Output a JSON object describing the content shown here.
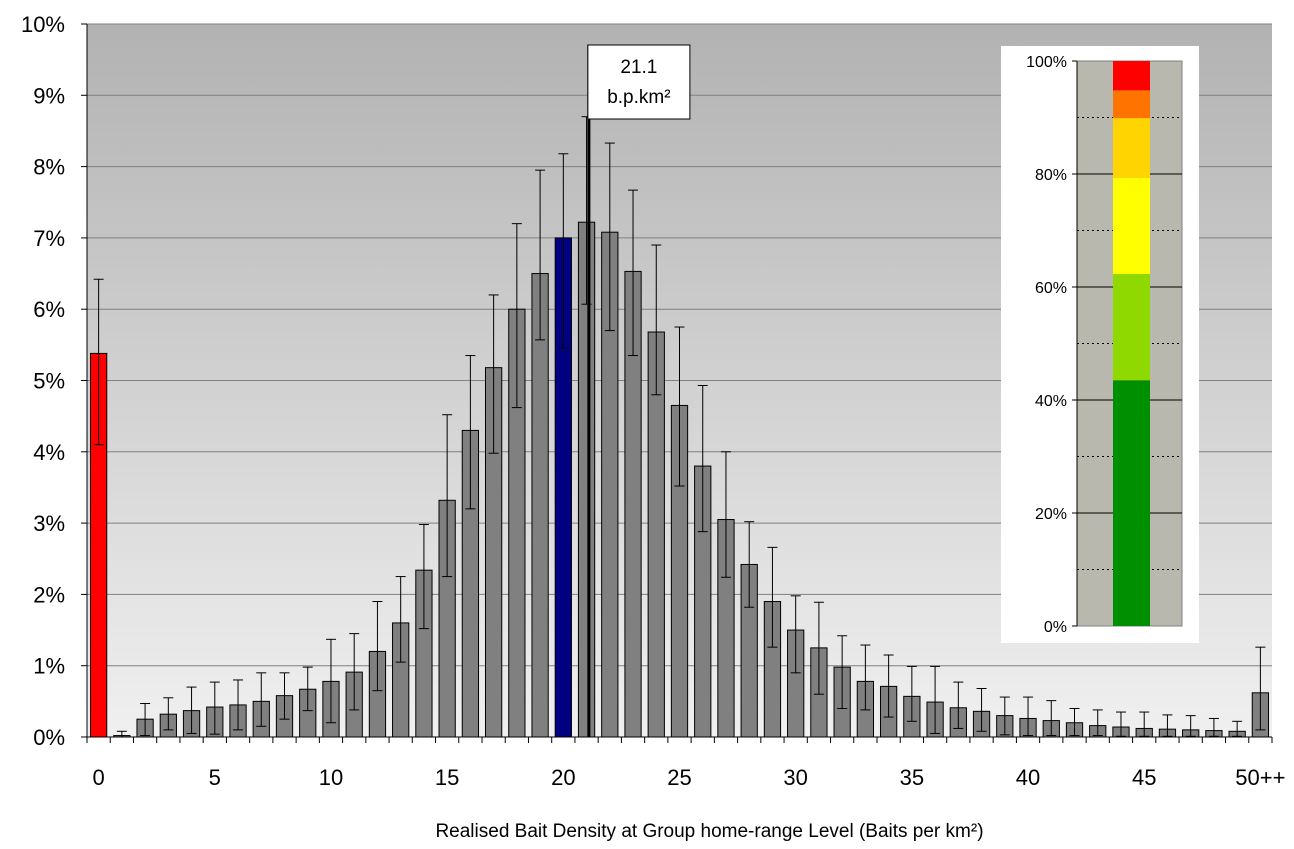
{
  "chart_data": [
    {
      "type": "bar",
      "xlabel": "Realised Bait Density at Group home-range Level (Baits per km²)",
      "ylabel": "",
      "ylim": [
        0,
        10
      ],
      "y_unit": "%",
      "y_ticks": [
        "0%",
        "1%",
        "2%",
        "3%",
        "4%",
        "5%",
        "6%",
        "7%",
        "8%",
        "9%",
        "10%"
      ],
      "x_tick_labels": [
        "0",
        "5",
        "10",
        "15",
        "20",
        "25",
        "30",
        "35",
        "40",
        "45",
        "50++"
      ],
      "categories": [
        "0",
        "1",
        "2",
        "3",
        "4",
        "5",
        "6",
        "7",
        "8",
        "9",
        "10",
        "11",
        "12",
        "13",
        "14",
        "15",
        "16",
        "17",
        "18",
        "19",
        "20",
        "21",
        "22",
        "23",
        "24",
        "25",
        "26",
        "27",
        "28",
        "29",
        "30",
        "31",
        "32",
        "33",
        "34",
        "35",
        "36",
        "37",
        "38",
        "39",
        "40",
        "41",
        "42",
        "43",
        "44",
        "45",
        "46",
        "47",
        "48",
        "49",
        "50++"
      ],
      "values": [
        5.38,
        0.02,
        0.25,
        0.32,
        0.37,
        0.42,
        0.45,
        0.5,
        0.58,
        0.67,
        0.78,
        0.91,
        1.2,
        1.6,
        2.34,
        3.32,
        4.3,
        5.18,
        6.0,
        6.5,
        7.0,
        7.22,
        7.08,
        6.53,
        5.68,
        4.65,
        3.8,
        3.05,
        2.42,
        1.9,
        1.5,
        1.25,
        0.98,
        0.78,
        0.71,
        0.57,
        0.49,
        0.41,
        0.36,
        0.3,
        0.26,
        0.23,
        0.2,
        0.16,
        0.14,
        0.12,
        0.11,
        0.1,
        0.09,
        0.08,
        0.62
      ],
      "error_upper": [
        6.42,
        0.08,
        0.47,
        0.55,
        0.7,
        0.77,
        0.8,
        0.9,
        0.9,
        0.98,
        1.37,
        1.45,
        1.9,
        2.25,
        2.98,
        4.52,
        5.35,
        6.2,
        7.2,
        7.95,
        8.18,
        8.7,
        8.33,
        7.67,
        6.9,
        5.75,
        4.93,
        4.0,
        3.02,
        2.66,
        1.98,
        1.89,
        1.42,
        1.29,
        1.15,
        0.99,
        0.99,
        0.77,
        0.68,
        0.56,
        0.56,
        0.51,
        0.4,
        0.38,
        0.35,
        0.35,
        0.31,
        0.3,
        0.26,
        0.22,
        1.26
      ],
      "error_lower": [
        4.1,
        0.0,
        0.02,
        0.1,
        0.05,
        0.04,
        0.1,
        0.15,
        0.25,
        0.37,
        0.2,
        0.38,
        0.65,
        1.05,
        1.52,
        2.25,
        3.2,
        3.98,
        4.62,
        5.57,
        5.45,
        6.07,
        5.7,
        5.35,
        4.8,
        3.52,
        2.88,
        2.24,
        1.82,
        1.26,
        0.9,
        0.6,
        0.4,
        0.38,
        0.28,
        0.22,
        0.05,
        0.12,
        0.08,
        0.03,
        0.02,
        0.02,
        0.02,
        0.02,
        0.01,
        0.01,
        0.01,
        0.01,
        0.01,
        0.01,
        0.1
      ],
      "colors": {
        "default": "#808080",
        "zero": "#ff0000",
        "highlight_index": 20,
        "highlight": "#000080"
      },
      "marker": {
        "x": 21.1,
        "label_line1": "21.1",
        "label_line2": "b.p.km²"
      }
    },
    {
      "type": "stacked_bar",
      "ylim": [
        0,
        100
      ],
      "y_ticks": [
        "0%",
        "20%",
        "40%",
        "60%",
        "80%",
        "100%"
      ],
      "segments": [
        {
          "from": 0,
          "to": 43.5,
          "color": "#008f00"
        },
        {
          "from": 43.5,
          "to": 62.3,
          "color": "#8fd800"
        },
        {
          "from": 62.3,
          "to": 79.3,
          "color": "#ffff00"
        },
        {
          "from": 79.3,
          "to": 89.9,
          "color": "#ffd400"
        },
        {
          "from": 89.9,
          "to": 94.8,
          "color": "#ff7300"
        },
        {
          "from": 94.8,
          "to": 100,
          "color": "#ff0000"
        }
      ]
    }
  ]
}
